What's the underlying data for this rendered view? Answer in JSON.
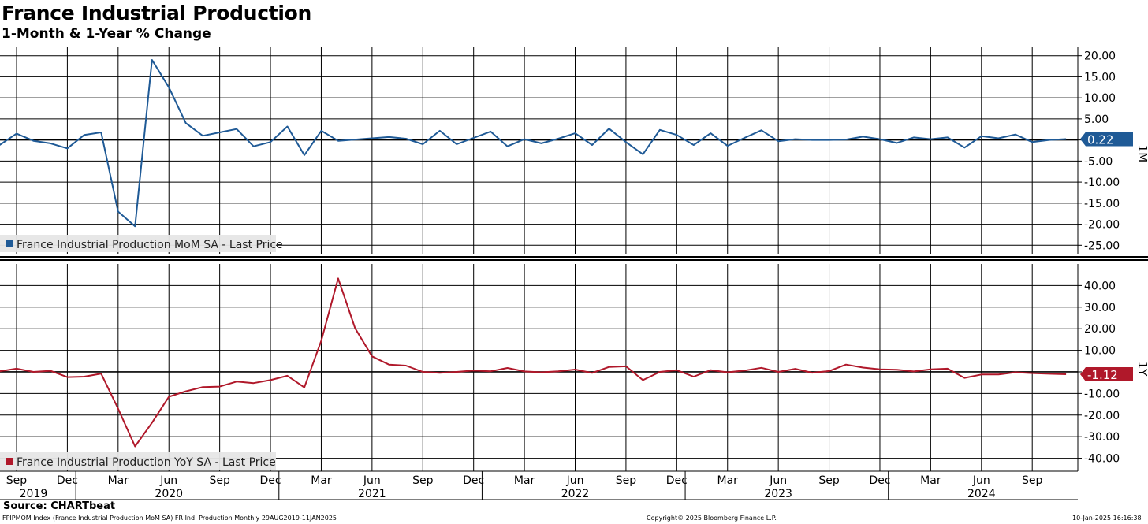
{
  "header": {
    "title": "France Industrial Production",
    "subtitle": "1-Month & 1-Year % Change"
  },
  "footer": {
    "source": "Source: CHARTbeat",
    "index_info": "FPIPMOM Index (France Industrial Production MoM SA) FR Ind. Production  Monthly 29AUG2019-11JAN2025",
    "copyright": "Copyright© 2025 Bloomberg Finance L.P.",
    "timestamp": "10-Jan-2025 16:16:38"
  },
  "colors": {
    "mom": "#1f5a96",
    "yoy": "#b0182a"
  },
  "chart_data": [
    {
      "type": "line",
      "panel": "top",
      "axis_label": "1M",
      "legend": "France Industrial Production MoM SA - Last Price",
      "legend_position": "bottom-left",
      "last_value_label": "0.22",
      "ylim": [
        -27,
        22
      ],
      "yticks": [
        20,
        15,
        10,
        5,
        0,
        -5,
        -10,
        -15,
        -20,
        -25
      ],
      "ytick_labels": [
        "20.00",
        "15.00",
        "10.00",
        "5.00",
        "",
        "-5.00",
        "-10.00",
        "-15.00",
        "-20.00",
        "-25.00"
      ],
      "grid": true,
      "series": [
        {
          "x": [
            "2019-08",
            "2019-09",
            "2019-10",
            "2019-11",
            "2019-12",
            "2020-01",
            "2020-02",
            "2020-03",
            "2020-04",
            "2020-05",
            "2020-06",
            "2020-07",
            "2020-08",
            "2020-09",
            "2020-10",
            "2020-11",
            "2020-12",
            "2021-01",
            "2021-02",
            "2021-03",
            "2021-04",
            "2021-05",
            "2021-06",
            "2021-07",
            "2021-08",
            "2021-09",
            "2021-10",
            "2021-11",
            "2021-12",
            "2022-01",
            "2022-02",
            "2022-03",
            "2022-04",
            "2022-05",
            "2022-06",
            "2022-07",
            "2022-08",
            "2022-09",
            "2022-10",
            "2022-11",
            "2022-12",
            "2023-01",
            "2023-02",
            "2023-03",
            "2023-04",
            "2023-05",
            "2023-06",
            "2023-07",
            "2023-08",
            "2023-09",
            "2023-10",
            "2023-11",
            "2023-12",
            "2024-01",
            "2024-02",
            "2024-03",
            "2024-04",
            "2024-05",
            "2024-06",
            "2024-07",
            "2024-08",
            "2024-09",
            "2024-10",
            "2024-11"
          ],
          "values": [
            -1.2,
            1.5,
            -0.2,
            -0.8,
            -2.0,
            1.2,
            1.8,
            -17.0,
            -20.5,
            19.0,
            12.5,
            4.0,
            1.0,
            1.8,
            2.6,
            -1.5,
            -0.5,
            3.2,
            -3.6,
            2.2,
            -0.2,
            0.1,
            0.4,
            0.7,
            0.3,
            -1.0,
            2.2,
            -1.0,
            0.5,
            2.0,
            -1.5,
            0.2,
            -0.8,
            0.3,
            1.6,
            -1.2,
            2.7,
            -0.5,
            -3.4,
            2.4,
            1.2,
            -1.2,
            1.6,
            -1.4,
            0.5,
            2.3,
            -0.3,
            0.2,
            0.0,
            0.0,
            0.1,
            0.8,
            0.2,
            -0.7,
            0.6,
            0.2,
            0.6,
            -1.8,
            0.9,
            0.4,
            1.3,
            -0.5,
            0.0,
            0.22
          ]
        }
      ]
    },
    {
      "type": "line",
      "panel": "bottom",
      "axis_label": "1Y",
      "legend": "France Industrial Production YoY SA - Last Price",
      "legend_position": "bottom-left",
      "last_value_label": "-1.12",
      "ylim": [
        -46,
        50
      ],
      "yticks": [
        40,
        30,
        20,
        10,
        0,
        -10,
        -20,
        -30,
        -40
      ],
      "ytick_labels": [
        "40.00",
        "30.00",
        "20.00",
        "10.00",
        "",
        "-10.00",
        "-20.00",
        "-30.00",
        "-40.00"
      ],
      "grid": true,
      "series": [
        {
          "x": [
            "2019-08",
            "2019-09",
            "2019-10",
            "2019-11",
            "2019-12",
            "2020-01",
            "2020-02",
            "2020-03",
            "2020-04",
            "2020-05",
            "2020-06",
            "2020-07",
            "2020-08",
            "2020-09",
            "2020-10",
            "2020-11",
            "2020-12",
            "2021-01",
            "2021-02",
            "2021-03",
            "2021-04",
            "2021-05",
            "2021-06",
            "2021-07",
            "2021-08",
            "2021-09",
            "2021-10",
            "2021-11",
            "2021-12",
            "2022-01",
            "2022-02",
            "2022-03",
            "2022-04",
            "2022-05",
            "2022-06",
            "2022-07",
            "2022-08",
            "2022-09",
            "2022-10",
            "2022-11",
            "2022-12",
            "2023-01",
            "2023-02",
            "2023-03",
            "2023-04",
            "2023-05",
            "2023-06",
            "2023-07",
            "2023-08",
            "2023-09",
            "2023-10",
            "2023-11",
            "2023-12",
            "2024-01",
            "2024-02",
            "2024-03",
            "2024-04",
            "2024-05",
            "2024-06",
            "2024-07",
            "2024-08",
            "2024-09",
            "2024-10",
            "2024-11"
          ],
          "values": [
            0.3,
            1.5,
            0.0,
            0.5,
            -2.4,
            -2.2,
            -0.8,
            -17.0,
            -34.5,
            -23.5,
            -11.5,
            -9.0,
            -7.0,
            -6.8,
            -4.5,
            -5.2,
            -3.8,
            -1.8,
            -7.2,
            14.5,
            43.3,
            20.2,
            7.2,
            3.4,
            2.9,
            0.0,
            -0.5,
            0.0,
            0.6,
            0.3,
            1.8,
            0.2,
            -0.2,
            0.3,
            1.1,
            -0.5,
            2.3,
            2.6,
            -3.8,
            0.0,
            0.8,
            -2.2,
            0.8,
            -0.2,
            0.6,
            1.9,
            0.0,
            1.4,
            -0.4,
            0.4,
            3.4,
            2.0,
            1.2,
            1.0,
            0.2,
            1.2,
            1.5,
            -2.8,
            -1.2,
            -1.2,
            -0.2,
            -0.6,
            -0.9,
            -1.12
          ]
        }
      ]
    }
  ],
  "xaxis": {
    "month_labels": [
      {
        "date": "2019-09",
        "label": "Sep"
      },
      {
        "date": "2019-12",
        "label": "Dec"
      },
      {
        "date": "2020-03",
        "label": "Mar"
      },
      {
        "date": "2020-06",
        "label": "Jun"
      },
      {
        "date": "2020-09",
        "label": "Sep"
      },
      {
        "date": "2020-12",
        "label": "Dec"
      },
      {
        "date": "2021-03",
        "label": "Mar"
      },
      {
        "date": "2021-06",
        "label": "Jun"
      },
      {
        "date": "2021-09",
        "label": "Sep"
      },
      {
        "date": "2021-12",
        "label": "Dec"
      },
      {
        "date": "2022-03",
        "label": "Mar"
      },
      {
        "date": "2022-06",
        "label": "Jun"
      },
      {
        "date": "2022-09",
        "label": "Sep"
      },
      {
        "date": "2022-12",
        "label": "Dec"
      },
      {
        "date": "2023-03",
        "label": "Mar"
      },
      {
        "date": "2023-06",
        "label": "Jun"
      },
      {
        "date": "2023-09",
        "label": "Sep"
      },
      {
        "date": "2023-12",
        "label": "Dec"
      },
      {
        "date": "2024-03",
        "label": "Mar"
      },
      {
        "date": "2024-06",
        "label": "Jun"
      },
      {
        "date": "2024-09",
        "label": "Sep"
      }
    ],
    "year_labels": [
      {
        "date": "2019-10",
        "label": "2019"
      },
      {
        "date": "2020-06",
        "label": "2020"
      },
      {
        "date": "2021-06",
        "label": "2021"
      },
      {
        "date": "2022-06",
        "label": "2022"
      },
      {
        "date": "2023-06",
        "label": "2023"
      },
      {
        "date": "2024-06",
        "label": "2024"
      }
    ],
    "year_separators": [
      "2020-01",
      "2021-01",
      "2022-01",
      "2023-01",
      "2024-01"
    ]
  }
}
